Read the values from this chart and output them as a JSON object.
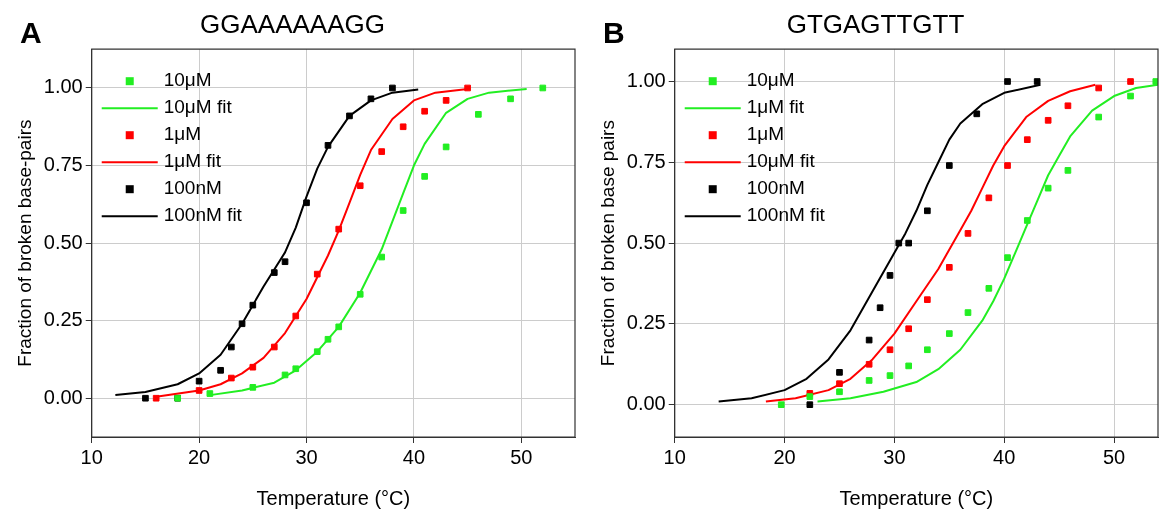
{
  "chart_data": [
    {
      "type": "scatter",
      "title": "GGAAAAAAGG",
      "xlabel": "Temperature (°C)",
      "ylabel": "Fraction of broken base-pairs",
      "annotations": [
        "A"
      ],
      "xlim": [
        10,
        55
      ],
      "xticks": [
        10,
        20,
        30,
        40,
        50
      ],
      "ylim": [
        -0.125,
        1.125
      ],
      "yticks": [
        {
          "value": 0,
          "label": "0.00"
        },
        {
          "value": 0.25,
          "label": "0.25"
        },
        {
          "value": 0.5,
          "label": "0.50"
        },
        {
          "value": 0.75,
          "label": "0.75"
        },
        {
          "value": 1,
          "label": "1.00"
        }
      ],
      "grid": true,
      "legend": "top left",
      "series": [
        {
          "name": "10μM",
          "marker": "square",
          "color": "#22ee22",
          "x": [
            18,
            21,
            25,
            28,
            29,
            31,
            32,
            33,
            35,
            37,
            39,
            41,
            43,
            46,
            49,
            52
          ],
          "values": [
            0,
            0.015,
            0.035,
            0.075,
            0.095,
            0.15,
            0.19,
            0.23,
            0.335,
            0.455,
            0.605,
            0.715,
            0.81,
            0.915,
            0.965,
            1.0
          ]
        },
        {
          "name": "10μM fit",
          "type": "line",
          "marker": "none",
          "color": "#22ee22",
          "x": [
            21,
            24,
            27,
            29,
            31,
            33,
            35,
            36,
            37,
            38,
            39,
            40,
            41,
            43,
            45,
            47,
            50.5
          ],
          "values": [
            0.01,
            0.025,
            0.05,
            0.09,
            0.15,
            0.23,
            0.34,
            0.41,
            0.48,
            0.57,
            0.66,
            0.75,
            0.82,
            0.92,
            0.965,
            0.985,
            0.997
          ]
        },
        {
          "name": "1μM",
          "marker": "square",
          "color": "#ff0000",
          "x": [
            16,
            20,
            23,
            25,
            27,
            29,
            31,
            33,
            35,
            37,
            39,
            41,
            43,
            45
          ],
          "values": [
            0,
            0.025,
            0.065,
            0.1,
            0.165,
            0.265,
            0.4,
            0.545,
            0.685,
            0.795,
            0.875,
            0.925,
            0.96,
            1.0
          ]
        },
        {
          "name": "1μM fit",
          "type": "line",
          "marker": "none",
          "color": "#ff0000",
          "x": [
            16,
            20,
            22,
            24,
            26,
            28,
            30,
            32,
            33,
            34,
            35,
            36,
            38,
            40,
            42,
            45
          ],
          "values": [
            0.005,
            0.025,
            0.045,
            0.08,
            0.13,
            0.21,
            0.32,
            0.46,
            0.54,
            0.63,
            0.72,
            0.8,
            0.9,
            0.96,
            0.985,
            0.997
          ]
        },
        {
          "name": "100nM",
          "marker": "square",
          "color": "#000000",
          "x": [
            15,
            18,
            20,
            22,
            23,
            24,
            25,
            27,
            28,
            30,
            32,
            34,
            36,
            38
          ],
          "values": [
            0,
            0,
            0.055,
            0.09,
            0.165,
            0.24,
            0.3,
            0.405,
            0.44,
            0.63,
            0.815,
            0.91,
            0.965,
            1.0
          ]
        },
        {
          "name": "100nM fit",
          "type": "line",
          "marker": "none",
          "color": "#000000",
          "x": [
            12.2,
            15,
            18,
            20,
            22,
            24,
            26,
            28,
            29,
            30,
            31,
            32,
            34,
            36,
            38,
            40.4
          ],
          "values": [
            0.01,
            0.02,
            0.045,
            0.08,
            0.14,
            0.24,
            0.36,
            0.47,
            0.55,
            0.65,
            0.74,
            0.81,
            0.91,
            0.96,
            0.985,
            0.995
          ]
        }
      ]
    },
    {
      "type": "scatter",
      "title": "GTGAGTTGTT",
      "xlabel": "Temperature (°C)",
      "ylabel": "Fraction of broken base pairs",
      "annotations": [
        "B"
      ],
      "xlim": [
        10,
        54
      ],
      "xticks": [
        10,
        20,
        30,
        40,
        50
      ],
      "ylim": [
        -0.1,
        1.1
      ],
      "yticks": [
        {
          "value": 0,
          "label": "0.00"
        },
        {
          "value": 0.25,
          "label": "0.25"
        },
        {
          "value": 0.5,
          "label": "0.50"
        },
        {
          "value": 0.75,
          "label": "0.75"
        },
        {
          "value": 1,
          "label": "1.00"
        }
      ],
      "grid": true,
      "legend": "top left",
      "series": [
        {
          "name": "10μM",
          "marker": "square",
          "color": "#22ee22",
          "x": [
            19.7,
            22.3,
            25,
            27.7,
            29.6,
            31.3,
            33,
            35,
            36.7,
            38.6,
            40.3,
            42.1,
            44,
            45.8,
            48.6,
            51.5,
            53.8
          ],
          "values": [
            0,
            0.025,
            0.04,
            0.075,
            0.09,
            0.12,
            0.17,
            0.22,
            0.285,
            0.36,
            0.455,
            0.57,
            0.67,
            0.725,
            0.89,
            0.955,
            1.0
          ]
        },
        {
          "name": "1μM fit",
          "type": "line",
          "marker": "none",
          "color": "#22ee22",
          "x": [
            23,
            26,
            29,
            32,
            34,
            36,
            38,
            39,
            40,
            41,
            42,
            43,
            44,
            45,
            46,
            48,
            50,
            52,
            54
          ],
          "values": [
            0.01,
            0.02,
            0.04,
            0.07,
            0.11,
            0.17,
            0.26,
            0.32,
            0.39,
            0.47,
            0.55,
            0.63,
            0.71,
            0.77,
            0.83,
            0.91,
            0.955,
            0.98,
            0.99
          ]
        },
        {
          "name": "1μM",
          "marker": "square",
          "color": "#ff0000",
          "x": [
            22.3,
            25,
            27.7,
            29.6,
            31.3,
            33,
            35,
            36.7,
            38.6,
            40.3,
            42.1,
            44,
            45.8,
            48.6,
            51.5
          ],
          "values": [
            0.035,
            0.065,
            0.125,
            0.17,
            0.235,
            0.325,
            0.425,
            0.53,
            0.64,
            0.74,
            0.82,
            0.88,
            0.925,
            0.98,
            1.0
          ]
        },
        {
          "name": "10μM fit",
          "type": "line",
          "marker": "none",
          "color": "#ff0000",
          "x": [
            18.3,
            21,
            24,
            26,
            28,
            30,
            32,
            34,
            36,
            37,
            38,
            39,
            40,
            42,
            44,
            46,
            48.3
          ],
          "values": [
            0.01,
            0.02,
            0.045,
            0.08,
            0.14,
            0.22,
            0.32,
            0.42,
            0.54,
            0.6,
            0.67,
            0.74,
            0.8,
            0.89,
            0.94,
            0.97,
            0.99
          ]
        },
        {
          "name": "100nM",
          "marker": "square",
          "color": "#000000",
          "x": [
            22.3,
            25,
            27.7,
            28.7,
            29.6,
            30.4,
            31.3,
            33,
            35,
            37.5,
            40.3,
            43
          ],
          "values": [
            0,
            0.1,
            0.2,
            0.3,
            0.4,
            0.5,
            0.5,
            0.6,
            0.74,
            0.9,
            1.0,
            1.0
          ]
        },
        {
          "name": "100nM fit",
          "type": "line",
          "marker": "none",
          "color": "#000000",
          "x": [
            14,
            17,
            20,
            22,
            24,
            26,
            28,
            30,
            31,
            32,
            33,
            34,
            35,
            36,
            38,
            40,
            43.3
          ],
          "values": [
            0.01,
            0.02,
            0.045,
            0.08,
            0.14,
            0.23,
            0.35,
            0.47,
            0.53,
            0.6,
            0.68,
            0.75,
            0.82,
            0.87,
            0.93,
            0.965,
            0.99
          ]
        }
      ]
    }
  ]
}
